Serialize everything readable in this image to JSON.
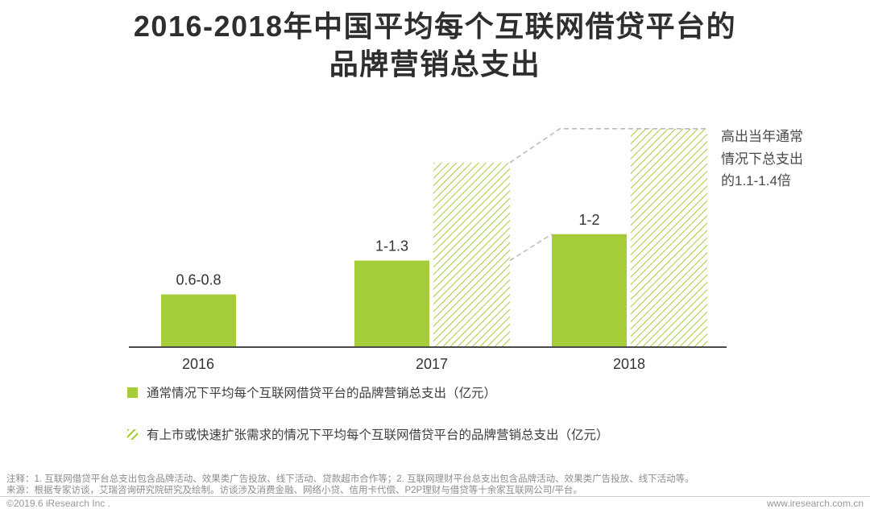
{
  "colors": {
    "green": "#a5cd39",
    "axis": "#4a4a4a",
    "dash": "#bdbdbd"
  },
  "title": "2016-2018年中国平均每个互联网借贷平台的\n品牌营销总支出",
  "chart_data": {
    "type": "bar",
    "categories": [
      "2016",
      "2017",
      "2018"
    ],
    "series": [
      {
        "name": "通常情况下平均每个互联网借贷平台的品牌营销总支出（亿元）",
        "style": "solid",
        "values": [
          0.7,
          1.15,
          1.5
        ],
        "value_labels": [
          "0.6-0.8",
          "1-1.3",
          "1-2"
        ]
      },
      {
        "name": "有上市或快速扩张需求的情况下平均每个互联网借贷平台的品牌营销总支出（亿元）",
        "style": "hatched",
        "values": [
          null,
          2.45,
          2.9
        ],
        "value_labels": [
          null,
          null,
          null
        ]
      }
    ],
    "ylim": [
      0,
      3.2
    ],
    "unit": "亿元",
    "annotation": "高出当年通常情况下总支出的1.1-1.4倍",
    "legend_position": "bottom-left",
    "grid": false
  },
  "annotation": "高出当年通常\n情况下总支出\n的1.1-1.4倍",
  "legend": [
    {
      "label": "通常情况下平均每个互联网借贷平台的品牌营销总支出（亿元）",
      "swatch": "solid"
    },
    {
      "label": "有上市或快速扩张需求的情况下平均每个互联网借贷平台的品牌营销总支出（亿元）",
      "swatch": "hatched"
    }
  ],
  "footnotes": {
    "note": "注释：1. 互联网借贷平台总支出包含品牌活动、效果类广告投放、线下活动、贷款超市合作等；2. 互联网理财平台总支出包含品牌活动、效果类广告投放、线下活动等。",
    "source": "来源：根据专家访谈，艾瑞咨询研究院研究及绘制。访谈涉及消费金融、网络小贷、信用卡代偿、P2P理财与借贷等十余家互联网公司/平台。"
  },
  "footer": {
    "copyright": "©2019.6 iResearch Inc .",
    "website": "www.iresearch.com.cn"
  }
}
